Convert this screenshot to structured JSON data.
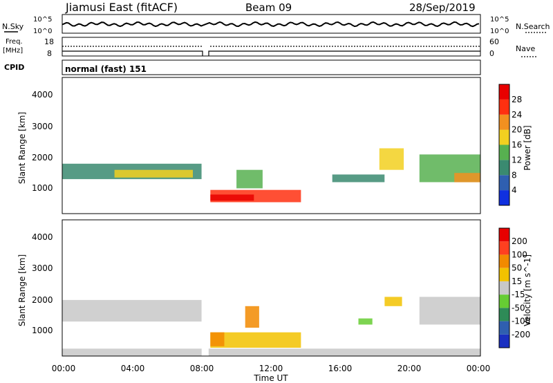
{
  "header": {
    "station": "Jiamusi East (fitACF)",
    "beam": "Beam 09",
    "date": "28/Sep/2019"
  },
  "noise_panel": {
    "left_label": "N.Sky",
    "right_label": "N.Search",
    "ticks": [
      "10^5",
      "10^0"
    ]
  },
  "freq_panel": {
    "left_label_1": "Freq.",
    "left_label_2": "[MHz]",
    "left_ticks": [
      "18",
      "8"
    ],
    "right_label": "Nave",
    "right_ticks": [
      "60",
      "0"
    ]
  },
  "cpid": {
    "label": "CPID",
    "value": "normal (fast) 151"
  },
  "axes": {
    "ylabel": "Slant Range [km]",
    "y_ticks": [
      "4000",
      "3000",
      "2000",
      "1000"
    ],
    "x_ticks": [
      "00:00",
      "04:00",
      "08:00",
      "12:00",
      "16:00",
      "20:00",
      "00:00"
    ],
    "xlabel": "Time UT"
  },
  "power_scale": {
    "label": "Power [dB]",
    "ticks": [
      "28",
      "24",
      "20",
      "16",
      "12",
      "8",
      "4"
    ],
    "colors": [
      "#1030e0",
      "#2f5fb0",
      "#3a8a70",
      "#57b050",
      "#f2d020",
      "#f29020",
      "#ff3010",
      "#e80000"
    ]
  },
  "velocity_scale": {
    "label": "Velocity [m s^-1]",
    "ticks": [
      "200",
      "100",
      "50",
      "15",
      "-15",
      "-50",
      "-100",
      "-200"
    ],
    "colors": [
      "#1a2fc0",
      "#2f5fb0",
      "#2e8b57",
      "#66cc33",
      "#c8c8c8",
      "#f2c200",
      "#f28a00",
      "#ff4020",
      "#e80000"
    ]
  },
  "chart_data": [
    {
      "type": "heatmap",
      "title": "Power [dB]",
      "xlabel": "Time UT",
      "ylabel": "Slant Range [km]",
      "xlim_hours": [
        0,
        24
      ],
      "ylim_km": [
        180,
        4600
      ],
      "color_range": [
        0,
        32
      ],
      "data_gap_hours": [
        8.0,
        8.4
      ],
      "regions": [
        {
          "t_start": 0.0,
          "t_end": 8.0,
          "range_lo": 1300,
          "range_hi": 1800,
          "value": 11
        },
        {
          "t_start": 3.0,
          "t_end": 7.5,
          "range_lo": 1350,
          "range_hi": 1600,
          "value": 18
        },
        {
          "t_start": 8.5,
          "t_end": 13.7,
          "range_lo": 550,
          "range_hi": 950,
          "value": 24
        },
        {
          "t_start": 8.5,
          "t_end": 11.0,
          "range_lo": 600,
          "range_hi": 800,
          "value": 30
        },
        {
          "t_start": 10.0,
          "t_end": 11.5,
          "range_lo": 1000,
          "range_hi": 1600,
          "value": 12
        },
        {
          "t_start": 15.5,
          "t_end": 18.5,
          "range_lo": 1200,
          "range_hi": 1450,
          "value": 9
        },
        {
          "t_start": 18.2,
          "t_end": 19.6,
          "range_lo": 1600,
          "range_hi": 2300,
          "value": 19
        },
        {
          "t_start": 20.5,
          "t_end": 24.0,
          "range_lo": 1200,
          "range_hi": 2100,
          "value": 15
        },
        {
          "t_start": 22.5,
          "t_end": 24.0,
          "range_lo": 1200,
          "range_hi": 1500,
          "value": 22
        }
      ]
    },
    {
      "type": "heatmap",
      "title": "Velocity [m s^-1]",
      "xlabel": "Time UT",
      "ylabel": "Slant Range [km]",
      "xlim_hours": [
        0,
        24
      ],
      "ylim_km": [
        180,
        4600
      ],
      "color_range": [
        -200,
        200
      ],
      "data_gap_hours": [
        8.0,
        8.4
      ],
      "regions": [
        {
          "t_start": 0.0,
          "t_end": 8.0,
          "range_lo": 1300,
          "range_hi": 2000,
          "value": 0
        },
        {
          "t_start": 8.5,
          "t_end": 13.7,
          "range_lo": 450,
          "range_hi": 950,
          "value": 30
        },
        {
          "t_start": 8.5,
          "t_end": 9.3,
          "range_lo": 500,
          "range_hi": 950,
          "value": 70
        },
        {
          "t_start": 10.5,
          "t_end": 11.3,
          "range_lo": 1100,
          "range_hi": 1800,
          "value": 70
        },
        {
          "t_start": 17.0,
          "t_end": 17.8,
          "range_lo": 1200,
          "range_hi": 1400,
          "value": -40
        },
        {
          "t_start": 18.5,
          "t_end": 19.5,
          "range_lo": 1800,
          "range_hi": 2100,
          "value": 30
        },
        {
          "t_start": 20.5,
          "t_end": 24.0,
          "range_lo": 1200,
          "range_hi": 2100,
          "value": 0
        },
        {
          "t_start": 0.0,
          "t_end": 24.0,
          "range_lo": 180,
          "range_hi": 420,
          "value": 20
        }
      ]
    }
  ]
}
